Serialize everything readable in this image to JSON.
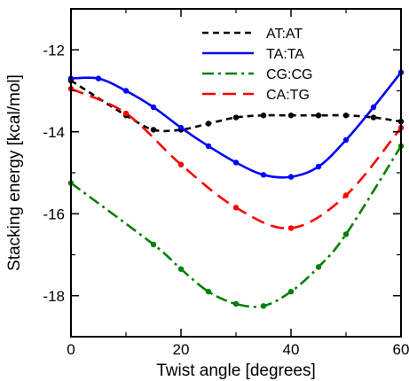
{
  "chart_data": {
    "type": "line",
    "title": "",
    "xlabel": "Twist angle [degrees]",
    "ylabel": "Stacking energy [kcal/mol]",
    "xlim": [
      0,
      60
    ],
    "ylim": [
      -19,
      -11
    ],
    "xticks": [
      0,
      20,
      40,
      60
    ],
    "yticks": [
      -18,
      -16,
      -14,
      -12
    ],
    "xtick_labels": [
      "0",
      "20",
      "40",
      "60"
    ],
    "ytick_labels": [
      "-18",
      "-16",
      "-14",
      "-12"
    ],
    "grid": false,
    "legend_position": "top-right",
    "series": [
      {
        "name": "AT:AT",
        "color": "#000000",
        "dash": "dashed",
        "x": [
          0,
          10,
          15,
          20,
          25,
          30,
          35,
          40,
          45,
          50,
          55,
          60
        ],
        "y": [
          -12.75,
          -13.6,
          -13.95,
          -13.95,
          -13.8,
          -13.65,
          -13.6,
          -13.6,
          -13.6,
          -13.6,
          -13.65,
          -13.75
        ]
      },
      {
        "name": "TA:TA",
        "color": "#0000ff",
        "dash": "solid",
        "x": [
          0,
          5,
          10,
          15,
          20,
          25,
          30,
          35,
          40,
          45,
          50,
          55,
          60
        ],
        "y": [
          -12.7,
          -12.7,
          -13.0,
          -13.4,
          -13.9,
          -14.35,
          -14.75,
          -15.05,
          -15.1,
          -14.85,
          -14.2,
          -13.4,
          -12.55
        ]
      },
      {
        "name": "CG:CG",
        "color": "#008000",
        "dash": "dash-dot",
        "x": [
          0,
          15,
          20,
          25,
          30,
          35,
          40,
          45,
          50,
          60
        ],
        "y": [
          -15.25,
          -16.75,
          -17.35,
          -17.9,
          -18.2,
          -18.25,
          -17.9,
          -17.3,
          -16.5,
          -14.35
        ]
      },
      {
        "name": "CA:TG",
        "color": "#ff0000",
        "dash": "long-dash",
        "x": [
          0,
          10,
          20,
          30,
          40,
          50,
          60
        ],
        "y": [
          -12.95,
          -13.55,
          -14.8,
          -15.85,
          -16.35,
          -15.55,
          -13.9
        ]
      }
    ]
  }
}
